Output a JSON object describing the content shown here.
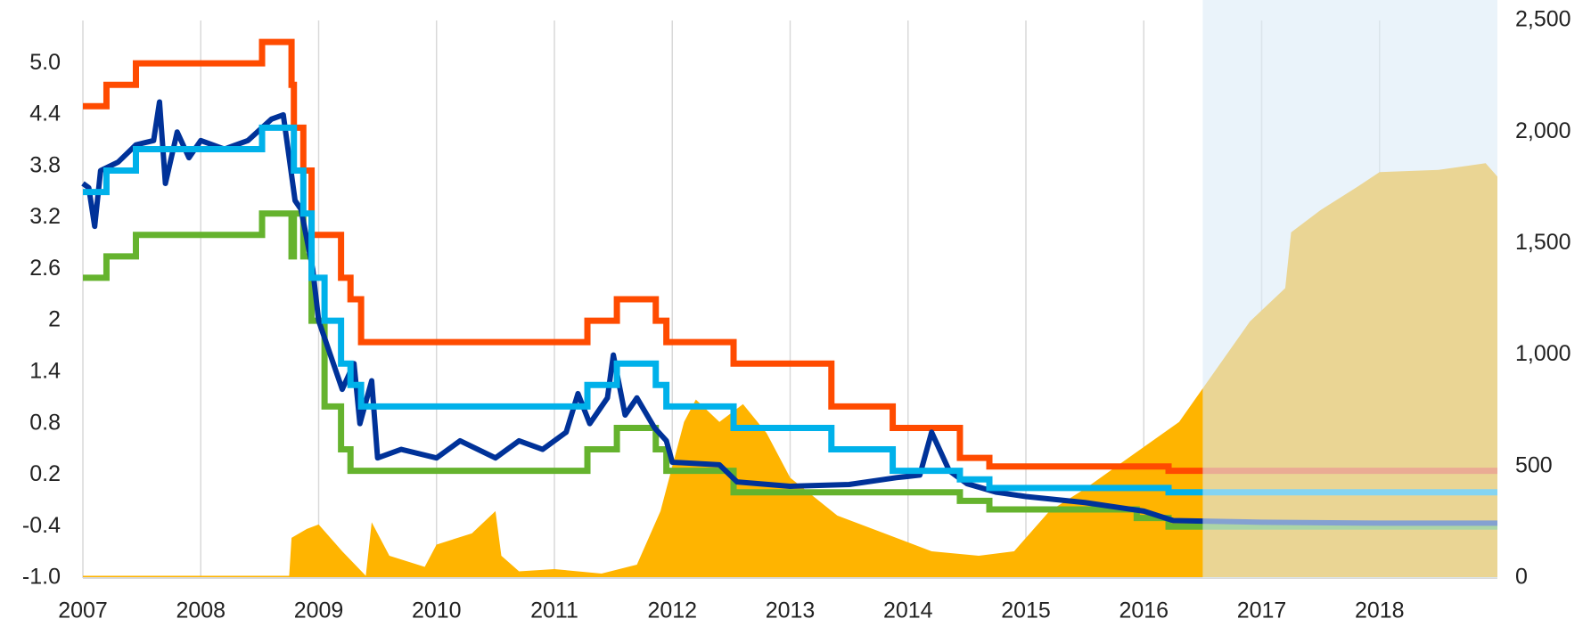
{
  "chart_data": {
    "type": "line",
    "xlim": [
      2007,
      2019
    ],
    "xticks": [
      2007,
      2008,
      2009,
      2010,
      2011,
      2012,
      2013,
      2014,
      2015,
      2016,
      2017,
      2018
    ],
    "ylim": [
      -1.0,
      5.5
    ],
    "yticks": [
      {
        "value": -1.0,
        "label": "-1.0"
      },
      -0.4,
      0.2,
      0.8,
      1.4,
      2.0,
      2.6,
      3.2,
      3.8,
      4.4,
      {
        "value": 5.0,
        "label": "5.0"
      }
    ],
    "y2lim": [
      0,
      2500
    ],
    "y2ticks": [
      0,
      {
        "value": 500,
        "label": "500"
      },
      {
        "value": 1000,
        "label": "1,000"
      },
      {
        "value": 1500,
        "label": "1,500"
      },
      {
        "value": 2000,
        "label": "2,000"
      },
      {
        "value": 2500,
        "label": "2,500"
      }
    ],
    "x_grid": true,
    "shaded_x": [
      2016.5,
      2019
    ],
    "shade_color": "#dcebf7",
    "series": [
      {
        "type": "area",
        "axis": "y2",
        "color": "#ffb400",
        "x": [
          2007,
          2008.75,
          2008.77,
          2008.9,
          2009.0,
          2009.2,
          2009.4,
          2009.45,
          2009.6,
          2009.9,
          2010.0,
          2010.3,
          2010.5,
          2010.55,
          2010.7,
          2011.0,
          2011.4,
          2011.7,
          2011.9,
          2012.1,
          2012.2,
          2012.4,
          2012.6,
          2012.8,
          2013.0,
          2013.4,
          2013.8,
          2014.2,
          2014.6,
          2014.9,
          2015.2,
          2015.5,
          2015.9,
          2016.3,
          2016.5,
          2016.9,
          2017.2,
          2017.25,
          2017.5,
          2017.8,
          2018.0,
          2018.5,
          2018.9,
          2019.0
        ],
        "values": [
          10,
          10,
          180,
          220,
          240,
          120,
          10,
          250,
          100,
          50,
          150,
          200,
          300,
          100,
          30,
          40,
          20,
          60,
          300,
          700,
          800,
          700,
          780,
          650,
          450,
          280,
          200,
          120,
          100,
          120,
          300,
          400,
          550,
          700,
          850,
          1150,
          1300,
          1550,
          1650,
          1750,
          1820,
          1830,
          1860,
          1800
        ]
      },
      {
        "type": "step",
        "color": "#65b32e",
        "x": [
          2007,
          2007.2,
          2007.45,
          2008.52,
          2008.77,
          2008.79,
          2008.87,
          2008.94,
          2009.05,
          2009.19,
          2009.27,
          2011.28,
          2011.53,
          2011.86,
          2011.95,
          2012.52,
          2014.44,
          2014.69,
          2015.94,
          2016.21,
          2019
        ],
        "values": [
          2.5,
          2.75,
          3.0,
          3.25,
          2.75,
          3.25,
          2.75,
          2.0,
          1.0,
          0.5,
          0.25,
          0.5,
          0.75,
          0.5,
          0.25,
          0.0,
          -0.1,
          -0.2,
          -0.3,
          -0.4,
          -0.4
        ]
      },
      {
        "type": "step",
        "color": "#ff4b00",
        "x": [
          2007,
          2007.2,
          2007.45,
          2008.52,
          2008.77,
          2008.79,
          2008.87,
          2008.94,
          2009.19,
          2009.27,
          2009.36,
          2011.28,
          2011.53,
          2011.86,
          2011.95,
          2012.52,
          2013.35,
          2013.87,
          2014.44,
          2014.69,
          2016.21,
          2019
        ],
        "values": [
          4.5,
          4.75,
          5.0,
          5.25,
          4.75,
          4.25,
          3.75,
          3.0,
          2.5,
          2.25,
          1.75,
          2.0,
          2.25,
          2.0,
          1.75,
          1.5,
          1.0,
          0.75,
          0.4,
          0.3,
          0.25,
          0.25
        ]
      },
      {
        "type": "line",
        "color": "#003299",
        "x": [
          2007.0,
          2007.05,
          2007.1,
          2007.15,
          2007.3,
          2007.45,
          2007.6,
          2007.65,
          2007.7,
          2007.8,
          2007.9,
          2008.0,
          2008.2,
          2008.4,
          2008.6,
          2008.7,
          2008.75,
          2008.8,
          2008.85,
          2008.95,
          2009.0,
          2009.1,
          2009.2,
          2009.3,
          2009.35,
          2009.45,
          2009.5,
          2009.7,
          2010.0,
          2010.2,
          2010.5,
          2010.7,
          2010.9,
          2011.1,
          2011.2,
          2011.3,
          2011.45,
          2011.5,
          2011.6,
          2011.7,
          2011.85,
          2011.95,
          2012.0,
          2012.4,
          2012.55,
          2013.0,
          2013.5,
          2013.9,
          2014.1,
          2014.2,
          2014.35,
          2014.5,
          2014.75,
          2015.0,
          2015.5,
          2016.0,
          2016.25,
          2017.0,
          2018.0,
          2019.0
        ],
        "values": [
          3.6,
          3.55,
          3.1,
          3.75,
          3.85,
          4.05,
          4.1,
          4.55,
          3.6,
          4.2,
          3.9,
          4.1,
          4.0,
          4.1,
          4.35,
          4.4,
          3.9,
          3.4,
          3.3,
          2.6,
          2.0,
          1.6,
          1.2,
          1.5,
          0.8,
          1.3,
          0.4,
          0.5,
          0.4,
          0.6,
          0.4,
          0.6,
          0.5,
          0.7,
          1.15,
          0.8,
          1.1,
          1.6,
          0.9,
          1.1,
          0.75,
          0.6,
          0.35,
          0.32,
          0.12,
          0.07,
          0.09,
          0.17,
          0.2,
          0.7,
          0.25,
          0.1,
          0.0,
          -0.05,
          -0.12,
          -0.22,
          -0.33,
          -0.35,
          -0.36,
          -0.36
        ]
      },
      {
        "type": "step",
        "color": "#00b1ea",
        "x": [
          2007,
          2007.2,
          2007.45,
          2008.52,
          2008.79,
          2008.87,
          2008.94,
          2009.05,
          2009.19,
          2009.27,
          2009.36,
          2011.28,
          2011.53,
          2011.86,
          2011.95,
          2012.52,
          2013.35,
          2013.87,
          2014.44,
          2014.69,
          2016.21,
          2019
        ],
        "values": [
          3.5,
          3.75,
          4.0,
          4.25,
          3.75,
          3.25,
          2.5,
          2.0,
          1.5,
          1.25,
          1.0,
          1.25,
          1.5,
          1.25,
          1.0,
          0.75,
          0.5,
          0.25,
          0.15,
          0.05,
          0.0,
          0.0
        ]
      }
    ]
  }
}
